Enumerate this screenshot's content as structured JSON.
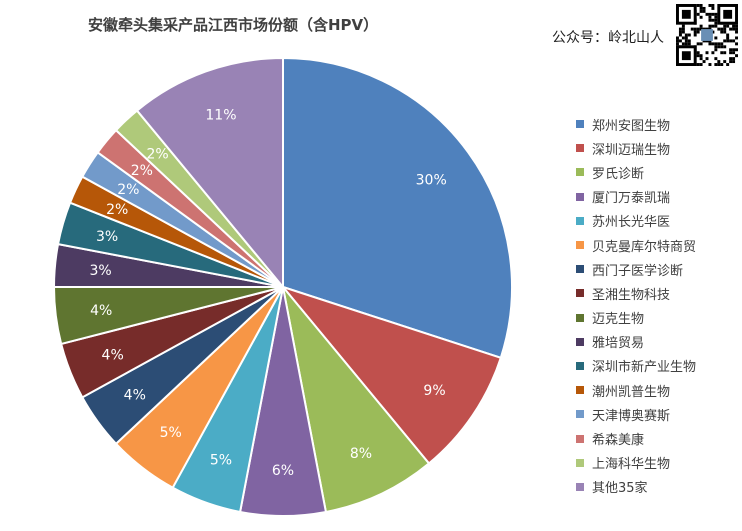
{
  "watermark": {
    "credit": "公众号：岭北山人"
  },
  "chart_data": {
    "type": "pie",
    "title": "安徽牵头集采产品江西市场份额（含HPV）",
    "start": "12 o'clock, clockwise",
    "legend_position": "right",
    "categories": [
      "郑州安图生物",
      "深圳迈瑞生物",
      "罗氏诊断",
      "厦门万泰凯瑞",
      "苏州长光华医",
      "贝克曼库尔特商贸",
      "西门子医学诊断",
      "圣湘生物科技",
      "迈克生物",
      "雅培贸易",
      "深圳市新产业生物",
      "潮州凯普生物",
      "天津博奥赛斯",
      "希森美康",
      "上海科华生物",
      "其他35家"
    ],
    "values": [
      30,
      9,
      8,
      6,
      5,
      5,
      4,
      4,
      4,
      3,
      3,
      2,
      2,
      2,
      2,
      11
    ],
    "labels": [
      "30%",
      "9%",
      "8%",
      "6%",
      "5%",
      "5%",
      "4%",
      "4%",
      "4%",
      "3%",
      "3%",
      "2%",
      "2%",
      "2%",
      "2%",
      "11%"
    ],
    "colors": [
      "#4F81BD",
      "#C0504D",
      "#9BBB59",
      "#8064A2",
      "#4BACC6",
      "#F79646",
      "#2C4D75",
      "#772C2A",
      "#5F7530",
      "#4D3B62",
      "#276A7C",
      "#B65708",
      "#729ACA",
      "#CD7371",
      "#AFC97A",
      "#9983B5"
    ]
  }
}
